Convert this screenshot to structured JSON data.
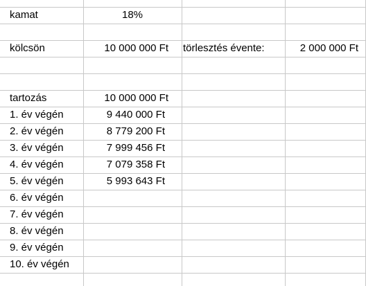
{
  "sheet": {
    "interest_label": "kamat",
    "interest_value": "18%",
    "loan_label": "kölcsön",
    "loan_value": "10 000 000 Ft",
    "repayment_label": "törlesztés évente:",
    "repayment_value": "2 000 000 Ft",
    "debt_label": "tartozás",
    "debt_value": "10 000 000 Ft",
    "rows": [
      {
        "label": "1. év végén",
        "value": "9 440 000 Ft"
      },
      {
        "label": "2. év végén",
        "value": "8 779 200 Ft"
      },
      {
        "label": "3. év végén",
        "value": "7 999 456 Ft"
      },
      {
        "label": "4. év végén",
        "value": "7 079 358 Ft"
      },
      {
        "label": "5. év végén",
        "value": "5 993 643 Ft"
      },
      {
        "label": "6. év végén",
        "value": ""
      },
      {
        "label": "7. év végén",
        "value": ""
      },
      {
        "label": "8. év végén",
        "value": ""
      },
      {
        "label": "9. év végén",
        "value": ""
      },
      {
        "label": "10. év végén",
        "value": ""
      }
    ]
  }
}
